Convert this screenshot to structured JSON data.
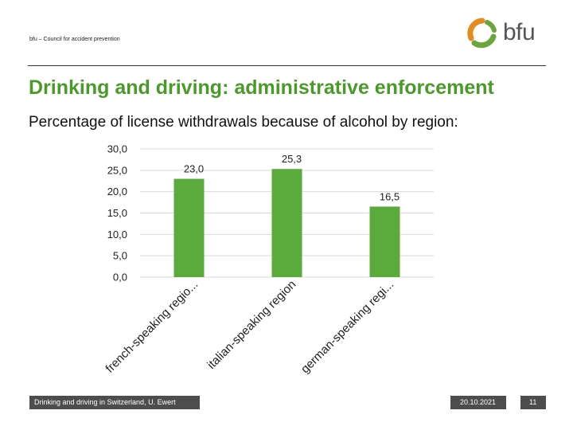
{
  "header": {
    "org": "bfu – Council for accident prevention",
    "logo_text": "bfu",
    "colors": {
      "brand_green": "#4a9a2a",
      "logo_orange": "#e58a1f",
      "logo_green": "#6aa63a"
    }
  },
  "slide": {
    "title": "Drinking and driving: administrative enforcement",
    "subtitle": "Percentage of license withdrawals because of alcohol by region:"
  },
  "chart_data": {
    "type": "bar",
    "categories": [
      "french-speaking regio...",
      "italian-speaking region",
      "german-speaking regi..."
    ],
    "values": [
      23.0,
      25.3,
      16.5
    ],
    "value_labels": [
      "23,0",
      "25,3",
      "16,5"
    ],
    "y_ticks": [
      "0,0",
      "5,0",
      "10,0",
      "15,0",
      "20,0",
      "25,0",
      "30,0"
    ],
    "ylim": [
      0,
      30
    ],
    "grid": true,
    "bar_color": "#5aaa3c",
    "title": "",
    "xlabel": "",
    "ylabel": ""
  },
  "footer": {
    "text": "Drinking and driving in Switzerland, U. Ewert",
    "date": "20.10.2021",
    "page": "11"
  }
}
